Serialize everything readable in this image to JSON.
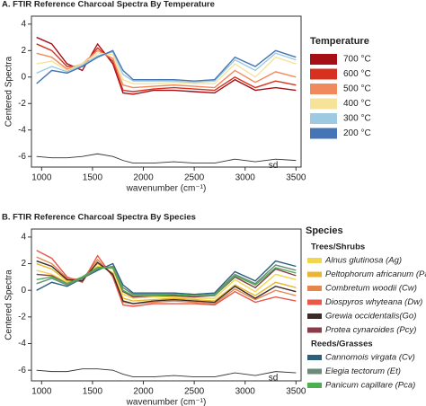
{
  "chart_data": [
    {
      "type": "line",
      "title": "A. FTIR Reference Charcoal Spectra By Temperature",
      "xlabel": "wavenumber (cm⁻¹)",
      "ylabel": "Centered Spectra",
      "legend_title": "Temperature",
      "xlim": [
        900,
        3550
      ],
      "xticks": [
        1000,
        1500,
        2000,
        2500,
        3000,
        3500
      ],
      "ylim": [
        -6.8,
        4.6
      ],
      "yticks": [
        -6,
        -4,
        -2,
        0,
        2,
        4
      ],
      "x": [
        950,
        1100,
        1250,
        1400,
        1550,
        1700,
        1800,
        1900,
        2100,
        2300,
        2500,
        2700,
        2900,
        3100,
        3300,
        3500
      ],
      "series": [
        {
          "name": "700 °C",
          "color": "#a50f15",
          "values": [
            3,
            2.5,
            1,
            0.5,
            2.5,
            1,
            -1.2,
            -1.3,
            -1,
            -1,
            -1.1,
            -1.2,
            -0.2,
            -1,
            -0.8,
            -1
          ]
        },
        {
          "name": "600 °C",
          "color": "#d7301f",
          "values": [
            2.5,
            2,
            0.8,
            0.8,
            2.2,
            1.2,
            -1,
            -1.1,
            -0.9,
            -0.8,
            -0.9,
            -1,
            0,
            -0.8,
            -0.3,
            -0.6
          ]
        },
        {
          "name": "500 °C",
          "color": "#f08a5d",
          "values": [
            1.8,
            1.5,
            0.6,
            1,
            2,
            1.4,
            -0.6,
            -0.8,
            -0.7,
            -0.6,
            -0.7,
            -0.8,
            0.5,
            -0.4,
            0.4,
            0
          ]
        },
        {
          "name": "400 °C",
          "color": "#f6e39a",
          "values": [
            1,
            1.2,
            0.5,
            1,
            1.8,
            1.7,
            -0.2,
            -0.5,
            -0.5,
            -0.4,
            -0.5,
            -0.5,
            1,
            0,
            1.5,
            1
          ]
        },
        {
          "name": "300 °C",
          "color": "#9ecae1",
          "values": [
            0.3,
            0.8,
            0.4,
            0.9,
            1.6,
            1.9,
            0.2,
            -0.3,
            -0.3,
            -0.3,
            -0.4,
            -0.3,
            1.3,
            0.5,
            1.8,
            1.3
          ]
        },
        {
          "name": "200 °C",
          "color": "#4575b4",
          "values": [
            -0.5,
            0.5,
            0.3,
            0.8,
            1.5,
            2,
            0.5,
            -0.2,
            -0.2,
            -0.2,
            -0.3,
            -0.2,
            1.5,
            0.8,
            2,
            1.5
          ]
        }
      ],
      "sd": {
        "name": "sd",
        "color": "#333333",
        "values": [
          -6,
          -6.1,
          -6.1,
          -6,
          -5.8,
          -6,
          -6.3,
          -6.5,
          -6.5,
          -6.4,
          -6.5,
          -6.5,
          -6.2,
          -6.4,
          -6.2,
          -6.3
        ]
      }
    },
    {
      "type": "line",
      "title": "B. FTIR Reference Charcoal Spectra By Species",
      "xlabel": "wavenumber (cm⁻¹)",
      "ylabel": "Centered Spectra",
      "legend_title": "Species",
      "xlim": [
        900,
        3550
      ],
      "xticks": [
        1000,
        1500,
        2000,
        2500,
        3000,
        3500
      ],
      "ylim": [
        -6.8,
        4.6
      ],
      "yticks": [
        -6,
        -4,
        -2,
        0,
        2,
        4
      ],
      "x": [
        950,
        1100,
        1250,
        1400,
        1550,
        1700,
        1800,
        1900,
        2100,
        2300,
        2500,
        2700,
        2900,
        3100,
        3300,
        3500
      ],
      "groups": [
        {
          "name": "Trees/Shrubs",
          "series": [
            {
              "name": "Alnus glutinosa (Ag)",
              "color": "#f2d64b",
              "values": [
                1.5,
                1.2,
                0.6,
                1,
                1.8,
                1.6,
                -0.3,
                -0.6,
                -0.5,
                -0.5,
                -0.6,
                -0.6,
                0.8,
                -0.1,
                1.2,
                0.8
              ]
            },
            {
              "name": "Peltophorum africanum (Pa)",
              "color": "#e8b630",
              "values": [
                2,
                1.6,
                0.7,
                0.9,
                2,
                1.3,
                -0.6,
                -0.8,
                -0.7,
                -0.6,
                -0.7,
                -0.8,
                0.4,
                -0.4,
                0.6,
                0.2
              ]
            },
            {
              "name": "Combretum woodii (Cw)",
              "color": "#e5864d",
              "values": [
                2.5,
                2,
                0.9,
                0.8,
                2.3,
                1.1,
                -0.9,
                -1,
                -0.9,
                -0.8,
                -0.9,
                -1,
                0.1,
                -0.7,
                0,
                -0.4
              ]
            },
            {
              "name": "Diospyros whyteana (Dw)",
              "color": "#e8574a",
              "values": [
                3,
                2.4,
                1,
                0.6,
                2.6,
                1,
                -1.1,
                -1.2,
                -1,
                -1,
                -1,
                -1.1,
                -0.1,
                -0.9,
                -0.5,
                -0.8
              ]
            },
            {
              "name": "Grewia occidentalis(Go)",
              "color": "#3a2a2a",
              "values": [
                2.2,
                1.8,
                0.8,
                0.7,
                2.1,
                1.2,
                -0.8,
                -1,
                -0.8,
                -0.7,
                -0.8,
                -0.9,
                0.3,
                -0.6,
                0.3,
                -0.1
              ]
            },
            {
              "name": "Protea cynaroides (Pcy)",
              "color": "#8b3a4a",
              "values": [
                1.2,
                1.1,
                0.5,
                1,
                1.7,
                1.7,
                -0.1,
                -0.5,
                -0.4,
                -0.4,
                -0.5,
                -0.4,
                1,
                0.2,
                1.6,
                1.1
              ]
            }
          ]
        },
        {
          "name": "Reeds/Grasses",
          "series": [
            {
              "name": "Cannomois virgata (Cv)",
              "color": "#2c5f7a",
              "values": [
                0,
                0.6,
                0.3,
                0.9,
                1.5,
                2,
                0.4,
                -0.2,
                -0.2,
                -0.2,
                -0.3,
                -0.2,
                1.4,
                0.7,
                2.2,
                1.8
              ]
            },
            {
              "name": "Elegia tectorum (Et)",
              "color": "#6b8a78",
              "values": [
                0.5,
                0.9,
                0.4,
                0.9,
                1.6,
                1.8,
                0.2,
                -0.3,
                -0.3,
                -0.3,
                -0.4,
                -0.3,
                1.2,
                0.5,
                1.9,
                1.5
              ]
            },
            {
              "name": "Panicum capillare (Pca)",
              "color": "#4caf50",
              "values": [
                0.8,
                1,
                0.5,
                1,
                1.7,
                1.7,
                0,
                -0.4,
                -0.4,
                -0.3,
                -0.4,
                -0.4,
                1.1,
                0.4,
                1.7,
                1.3
              ]
            }
          ]
        }
      ],
      "sd": {
        "name": "sd",
        "color": "#333333",
        "values": [
          -6,
          -6.1,
          -6.1,
          -5.9,
          -5.9,
          -6,
          -6.3,
          -6.5,
          -6.5,
          -6.4,
          -6.5,
          -6.5,
          -6.2,
          -6.4,
          -6.1,
          -6.2
        ]
      }
    }
  ]
}
